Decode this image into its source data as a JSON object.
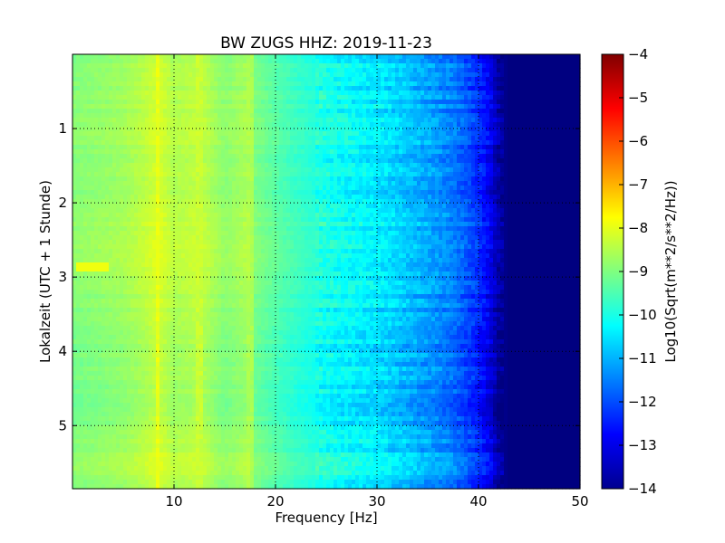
{
  "chart_data": {
    "type": "heatmap",
    "title": "BW ZUGS HHZ: 2019-11-23",
    "xlabel": "Frequency [Hz]",
    "ylabel": "Lokalzeit (UTC + 1 Stunde)",
    "xlim": [
      0,
      50
    ],
    "ylim": [
      5.85,
      0
    ],
    "x_ticks": [
      10,
      20,
      30,
      40,
      50
    ],
    "y_ticks": [
      1,
      2,
      3,
      4,
      5
    ],
    "grid": true,
    "colormap": "jet",
    "colorbar": {
      "label": "Log10(Sqrt(m**2/s**2/Hz))",
      "range": [
        -14,
        -4
      ],
      "ticks": [
        -4,
        -5,
        -6,
        -7,
        -8,
        -9,
        -10,
        -11,
        -12,
        -13,
        -14
      ]
    },
    "frequency_profile": {
      "frequency_hz": [
        0,
        2,
        5,
        7,
        8.5,
        10,
        12,
        13,
        15,
        17.5,
        18,
        20,
        22,
        25,
        28,
        30,
        33,
        35,
        37,
        38.5,
        40,
        41,
        42,
        43,
        50
      ],
      "log10_amplitude": [
        -9.0,
        -8.9,
        -8.75,
        -8.5,
        -8.2,
        -8.6,
        -8.45,
        -8.5,
        -8.95,
        -8.6,
        -9.1,
        -9.45,
        -9.75,
        -10.1,
        -10.35,
        -10.5,
        -10.9,
        -11.2,
        -11.5,
        -11.9,
        -12.4,
        -12.9,
        -13.7,
        -14.0,
        -14.0
      ]
    },
    "temporal_variation": {
      "hours": [
        0.0,
        1.0,
        1.5,
        2.0,
        2.5,
        2.85,
        3.0,
        4.0,
        4.6,
        5.0,
        5.5,
        5.85
      ],
      "offset_log10": [
        0.0,
        0.1,
        0.05,
        0.1,
        0.2,
        0.3,
        0.1,
        -0.1,
        -0.15,
        -0.05,
        0.15,
        0.05
      ]
    },
    "features": [
      {
        "type": "line",
        "frequency_hz": 8.5,
        "hours": [
          0,
          5.85
        ],
        "log10_amplitude": -8.0
      },
      {
        "type": "line",
        "frequency_hz": 12.5,
        "hours": [
          0,
          5.85
        ],
        "log10_amplitude": -8.3
      },
      {
        "type": "line",
        "frequency_hz": 17.5,
        "hours": [
          0,
          5.85
        ],
        "log10_amplitude": -8.6
      },
      {
        "type": "patch",
        "frequency_hz": [
          0.5,
          3.5
        ],
        "hours": [
          2.83,
          2.9
        ],
        "log10_amplitude": -7.9
      }
    ]
  }
}
